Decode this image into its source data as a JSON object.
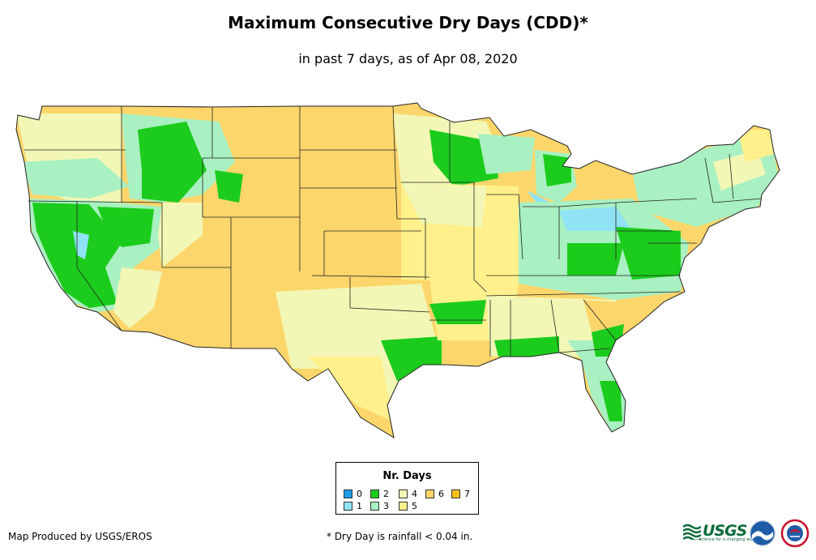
{
  "title": "Maximum Consecutive Dry Days (CDD)*",
  "subtitle": "in past 7 days, as of Apr 08, 2020",
  "legend": {
    "title": "Nr. Days",
    "items": [
      {
        "label": "0",
        "color": "#1a9ee8"
      },
      {
        "label": "1",
        "color": "#8fe3f5"
      },
      {
        "label": "2",
        "color": "#1ccc1c"
      },
      {
        "label": "3",
        "color": "#a9f0c2"
      },
      {
        "label": "4",
        "color": "#f2f7b5"
      },
      {
        "label": "5",
        "color": "#fff08c"
      },
      {
        "label": "6",
        "color": "#fcd66b"
      },
      {
        "label": "7",
        "color": "#fcc21a"
      }
    ]
  },
  "credit": "Map Produced by USGS/EROS",
  "footnote": "* Dry Day is rainfall < 0.04 in.",
  "logos": {
    "usgs_text": "USGS",
    "usgs_tagline": "science for a changing world",
    "noaa_text": "NOAA"
  },
  "colors": {
    "state_border": "#222222",
    "usgs_green": "#0b6a3b",
    "noaa_blue": "#1f5ca8"
  }
}
